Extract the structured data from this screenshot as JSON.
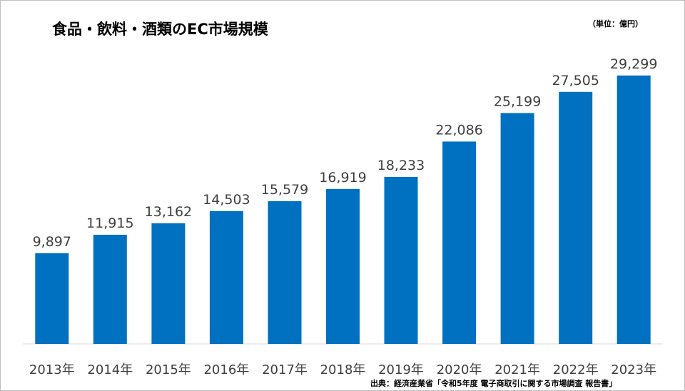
{
  "header": {
    "title": "食品・飲料・酒類のEC市場規模",
    "unit_note": "（単位：億円）"
  },
  "footer": {
    "source": "出典：経済産業省「令和5年度 電子商取引に関する市場調査 報告書」"
  },
  "chart_data": {
    "type": "bar",
    "title": "食品・飲料・酒類のEC市場規模",
    "xlabel": "",
    "ylabel": "",
    "categories": [
      "2013年",
      "2014年",
      "2015年",
      "2016年",
      "2017年",
      "2018年",
      "2019年",
      "2020年",
      "2021年",
      "2022年",
      "2023年"
    ],
    "values": [
      9897,
      11915,
      13162,
      14503,
      15579,
      16919,
      18233,
      22086,
      25199,
      27505,
      29299
    ],
    "value_labels": [
      "9,897",
      "11,915",
      "13,162",
      "14,503",
      "15,579",
      "16,919",
      "18,233",
      "22,086",
      "25,199",
      "27,505",
      "29,299"
    ],
    "ylim": [
      0,
      32000
    ],
    "grid": false,
    "legend": "none",
    "bar_color": "#0070C0"
  }
}
